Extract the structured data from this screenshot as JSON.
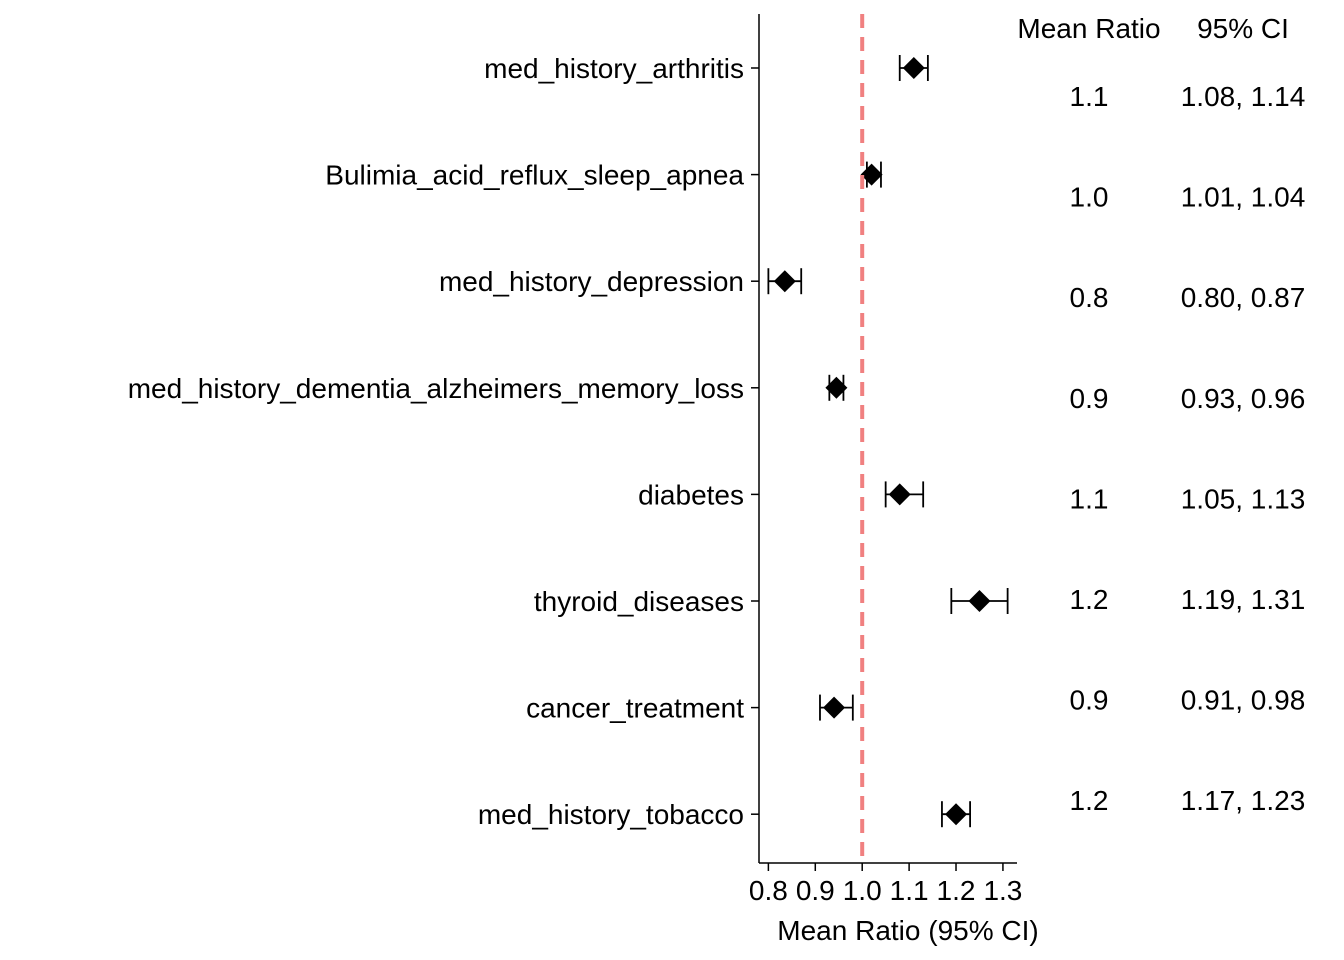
{
  "chart_data": {
    "type": "scatter",
    "subtype": "forest-plot",
    "xlabel": "Mean Ratio (95% CI)",
    "xlim": [
      0.78,
      1.33
    ],
    "xticks": [
      0.8,
      0.9,
      1.0,
      1.1,
      1.2,
      1.3
    ],
    "xtick_labels": [
      "0.8",
      "0.9",
      "1.0",
      "1.1",
      "1.2",
      "1.3"
    ],
    "reference_line": {
      "x": 1.0,
      "style": "dashed",
      "color": "#F08080"
    },
    "grid": false,
    "marker": "diamond",
    "marker_color": "#000000",
    "table_headers": {
      "estimate": "Mean Ratio",
      "ci": "95% CI"
    },
    "rows": [
      {
        "label": "med_history_arthritis",
        "estimate": 1.11,
        "ci_low": 1.08,
        "ci_high": 1.14,
        "estimate_text": "1.1",
        "ci_text": "1.08, 1.14"
      },
      {
        "label": "Bulimia_acid_reflux_sleep_apnea",
        "estimate": 1.02,
        "ci_low": 1.01,
        "ci_high": 1.04,
        "estimate_text": "1.0",
        "ci_text": "1.01, 1.04"
      },
      {
        "label": "med_history_depression",
        "estimate": 0.835,
        "ci_low": 0.8,
        "ci_high": 0.87,
        "estimate_text": "0.8",
        "ci_text": "0.80, 0.87"
      },
      {
        "label": "med_history_dementia_alzheimers_memory_loss",
        "estimate": 0.945,
        "ci_low": 0.93,
        "ci_high": 0.96,
        "estimate_text": "0.9",
        "ci_text": "0.93, 0.96"
      },
      {
        "label": "diabetes",
        "estimate": 1.08,
        "ci_low": 1.05,
        "ci_high": 1.13,
        "estimate_text": "1.1",
        "ci_text": "1.05, 1.13"
      },
      {
        "label": "thyroid_diseases",
        "estimate": 1.25,
        "ci_low": 1.19,
        "ci_high": 1.31,
        "estimate_text": "1.2",
        "ci_text": "1.19, 1.31"
      },
      {
        "label": "cancer_treatment",
        "estimate": 0.94,
        "ci_low": 0.91,
        "ci_high": 0.98,
        "estimate_text": "0.9",
        "ci_text": "0.91, 0.98"
      },
      {
        "label": "med_history_tobacco",
        "estimate": 1.2,
        "ci_low": 1.17,
        "ci_high": 1.23,
        "estimate_text": "1.2",
        "ci_text": "1.17, 1.23"
      }
    ]
  }
}
